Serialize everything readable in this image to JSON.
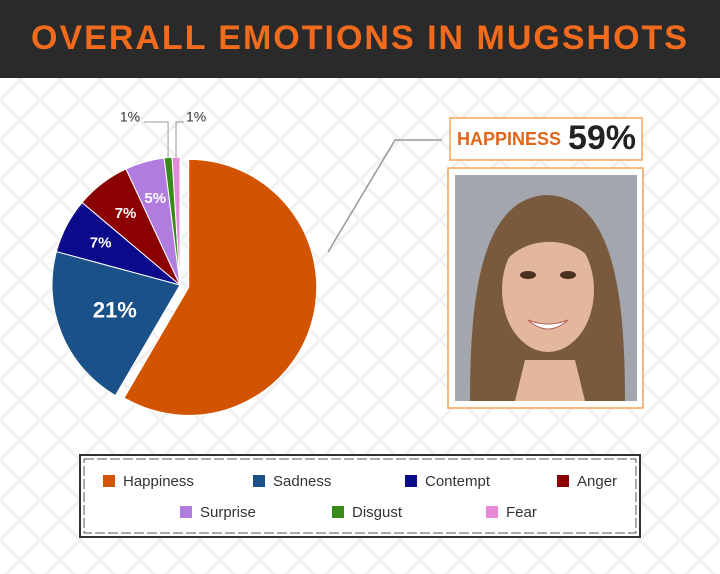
{
  "chart_data": {
    "type": "pie",
    "title": "OVERALL EMOTIONS IN MUGSHOTS",
    "categories": [
      "Happiness",
      "Sadness",
      "Contempt",
      "Anger",
      "Surprise",
      "Disgust",
      "Fear"
    ],
    "values": [
      59,
      21,
      7,
      7,
      5,
      1,
      1
    ],
    "value_labels": [
      "59%",
      "21%",
      "7%",
      "7%",
      "5%",
      "1%",
      "1%"
    ],
    "colors": [
      "#d35400",
      "#1a5189",
      "#0a0a8a",
      "#8b0000",
      "#b07ce0",
      "#3a8a1a",
      "#e58ad8"
    ],
    "callout_label": "HAPPINESS"
  }
}
